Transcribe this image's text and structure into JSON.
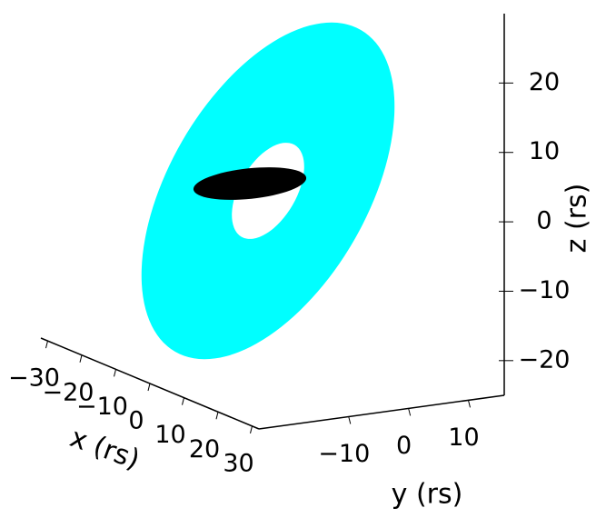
{
  "chart_data": {
    "type": "3d",
    "xlabel": "x (rs)",
    "ylabel": "y (rs)",
    "zlabel": "z (rs)",
    "xlim": [
      -32,
      32
    ],
    "ylim": [
      -25,
      16
    ],
    "zlim": [
      -25,
      30
    ],
    "xticks": [
      {
        "value": -30,
        "label": "−30"
      },
      {
        "value": -20,
        "label": "−20"
      },
      {
        "value": -10,
        "label": "−10"
      },
      0,
      10,
      20,
      30
    ],
    "yticks": [
      {
        "value": -10,
        "label": "−10"
      },
      0,
      10
    ],
    "zticks": [
      {
        "value": -20,
        "label": "−20"
      },
      {
        "value": -10,
        "label": "−10"
      },
      0,
      10,
      20
    ],
    "disk": {
      "inner_radius": 8,
      "outer_radius": 28,
      "color": "#00ffff"
    },
    "body": {
      "radius": 8,
      "color": "#000000"
    },
    "grid": false
  }
}
